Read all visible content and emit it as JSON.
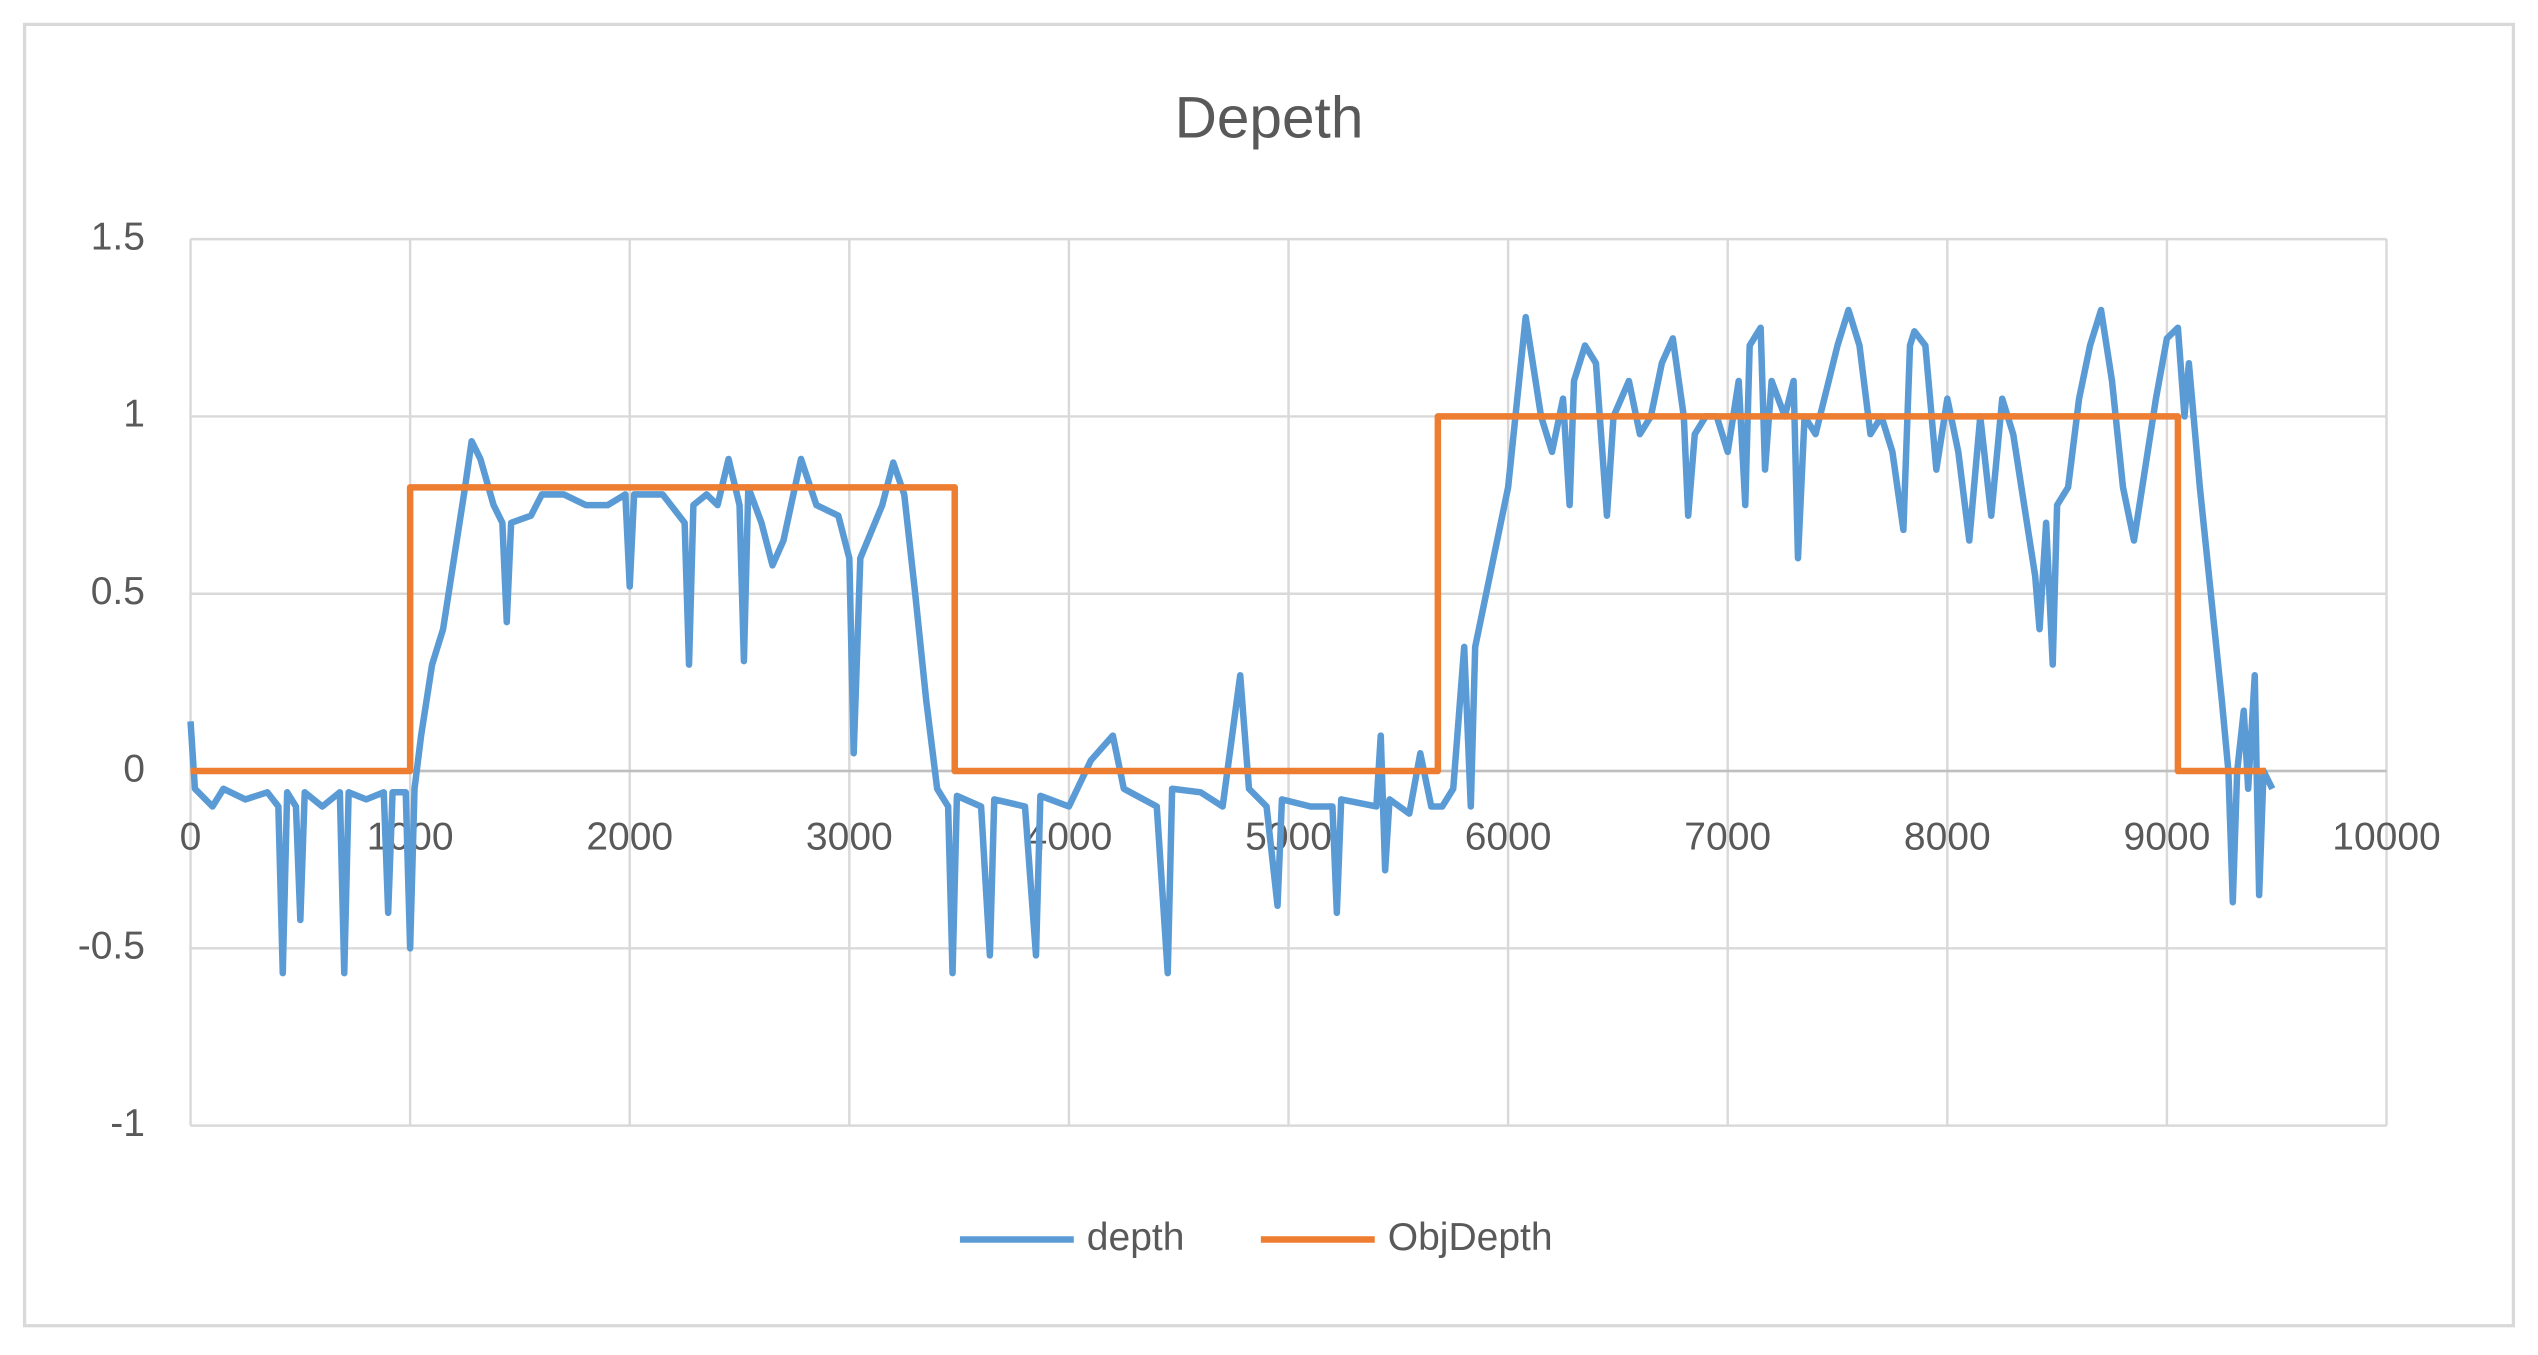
{
  "chart_data": {
    "type": "line",
    "title": "Depeth",
    "xlim": [
      0,
      10000
    ],
    "xticks": [
      0,
      1000,
      2000,
      3000,
      4000,
      5000,
      6000,
      7000,
      8000,
      9000,
      10000
    ],
    "ylim": [
      -1,
      1.5
    ],
    "yticks": [
      -1,
      -0.5,
      0,
      0.5,
      1,
      1.5
    ],
    "grid": true,
    "legend": "bottom",
    "series": [
      {
        "name": "depth",
        "color": "#5b9bd5",
        "x": [
          0,
          20,
          100,
          150,
          250,
          350,
          400,
          420,
          440,
          480,
          500,
          520,
          600,
          680,
          700,
          720,
          800,
          880,
          900,
          920,
          980,
          1000,
          1020,
          1050,
          1100,
          1150,
          1200,
          1250,
          1280,
          1320,
          1380,
          1420,
          1440,
          1460,
          1550,
          1600,
          1700,
          1800,
          1900,
          1980,
          2000,
          2020,
          2150,
          2250,
          2270,
          2290,
          2350,
          2400,
          2450,
          2500,
          2520,
          2540,
          2600,
          2650,
          2700,
          2780,
          2850,
          2950,
          3000,
          3020,
          3050,
          3150,
          3200,
          3250,
          3300,
          3350,
          3400,
          3450,
          3470,
          3490,
          3600,
          3640,
          3660,
          3800,
          3850,
          3870,
          4000,
          4100,
          4200,
          4250,
          4400,
          4450,
          4470,
          4600,
          4700,
          4780,
          4820,
          4900,
          4950,
          4970,
          5100,
          5200,
          5220,
          5240,
          5400,
          5420,
          5440,
          5460,
          5550,
          5600,
          5650,
          5700,
          5750,
          5800,
          5830,
          5850,
          5900,
          6000,
          6050,
          6080,
          6150,
          6200,
          6250,
          6280,
          6300,
          6350,
          6400,
          6450,
          6480,
          6550,
          6600,
          6650,
          6700,
          6750,
          6800,
          6820,
          6850,
          6900,
          6950,
          7000,
          7050,
          7080,
          7100,
          7150,
          7170,
          7200,
          7260,
          7300,
          7320,
          7350,
          7400,
          7500,
          7550,
          7600,
          7650,
          7700,
          7750,
          7800,
          7830,
          7850,
          7900,
          7950,
          8000,
          8050,
          8100,
          8150,
          8200,
          8250,
          8300,
          8350,
          8400,
          8420,
          8450,
          8480,
          8500,
          8550,
          8600,
          8650,
          8700,
          8750,
          8800,
          8850,
          8900,
          8950,
          9000,
          9050,
          9080,
          9100,
          9150,
          9200,
          9250,
          9280,
          9300,
          9320,
          9350,
          9370,
          9400,
          9420,
          9440,
          9480
        ],
        "values": [
          0.14,
          -0.05,
          -0.1,
          -0.05,
          -0.08,
          -0.06,
          -0.1,
          -0.57,
          -0.06,
          -0.1,
          -0.42,
          -0.06,
          -0.1,
          -0.06,
          -0.57,
          -0.06,
          -0.08,
          -0.06,
          -0.4,
          -0.06,
          -0.06,
          -0.5,
          -0.05,
          0.1,
          0.3,
          0.4,
          0.6,
          0.8,
          0.93,
          0.88,
          0.75,
          0.7,
          0.42,
          0.7,
          0.72,
          0.78,
          0.78,
          0.75,
          0.75,
          0.78,
          0.52,
          0.78,
          0.78,
          0.7,
          0.3,
          0.75,
          0.78,
          0.75,
          0.88,
          0.75,
          0.31,
          0.8,
          0.7,
          0.58,
          0.65,
          0.88,
          0.75,
          0.72,
          0.6,
          0.05,
          0.6,
          0.75,
          0.87,
          0.78,
          0.5,
          0.2,
          -0.05,
          -0.1,
          -0.57,
          -0.07,
          -0.1,
          -0.52,
          -0.08,
          -0.1,
          -0.52,
          -0.07,
          -0.1,
          0.03,
          0.1,
          -0.05,
          -0.1,
          -0.57,
          -0.05,
          -0.06,
          -0.1,
          0.27,
          -0.05,
          -0.1,
          -0.38,
          -0.08,
          -0.1,
          -0.1,
          -0.4,
          -0.08,
          -0.1,
          0.1,
          -0.28,
          -0.08,
          -0.12,
          0.05,
          -0.1,
          -0.1,
          -0.05,
          0.35,
          -0.1,
          0.35,
          0.5,
          0.8,
          1.1,
          1.28,
          1.0,
          0.9,
          1.05,
          0.75,
          1.1,
          1.2,
          1.15,
          0.72,
          1.0,
          1.1,
          0.95,
          1.0,
          1.15,
          1.22,
          1.0,
          0.72,
          0.95,
          1.0,
          1.0,
          0.9,
          1.1,
          0.75,
          1.2,
          1.25,
          0.85,
          1.1,
          1.0,
          1.1,
          0.6,
          1.0,
          0.95,
          1.2,
          1.3,
          1.2,
          0.95,
          1.0,
          0.9,
          0.68,
          1.2,
          1.24,
          1.2,
          0.85,
          1.05,
          0.9,
          0.65,
          1.0,
          0.72,
          1.05,
          0.95,
          0.75,
          0.55,
          0.4,
          0.7,
          0.3,
          0.75,
          0.8,
          1.05,
          1.2,
          1.3,
          1.1,
          0.8,
          0.65,
          0.85,
          1.05,
          1.22,
          1.25,
          1.0,
          1.15,
          0.8,
          0.5,
          0.2,
          0.0,
          -0.37,
          0.0,
          0.17,
          -0.05,
          0.27,
          -0.35,
          0.0,
          -0.05
        ]
      },
      {
        "name": "ObjDepth",
        "color": "#ed7d31",
        "x": [
          0,
          1000,
          1000,
          3480,
          3480,
          5680,
          5680,
          9050,
          9050,
          9450
        ],
        "values": [
          0,
          0,
          0.8,
          0.8,
          0,
          0,
          1,
          1,
          0,
          0
        ]
      }
    ]
  }
}
